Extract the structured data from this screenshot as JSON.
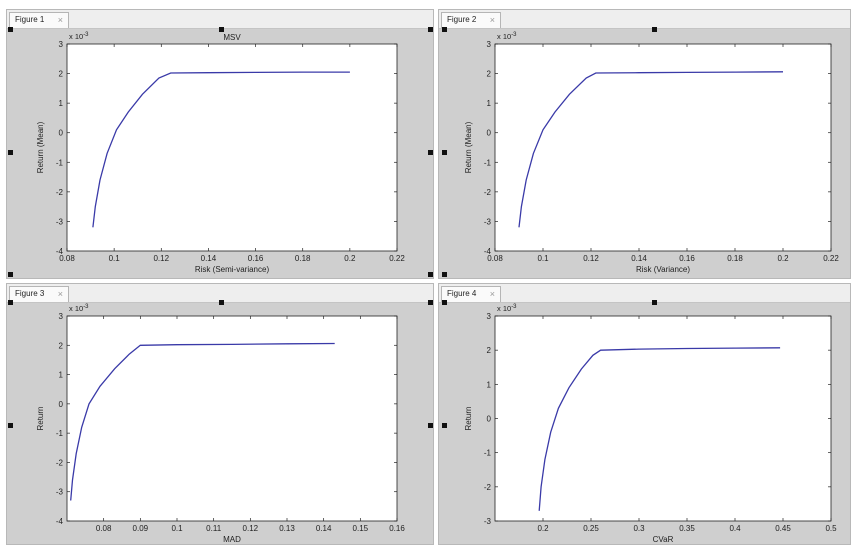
{
  "figures": [
    {
      "tab_label": "Figure 1",
      "close": "×"
    },
    {
      "tab_label": "Figure 2",
      "close": "×"
    },
    {
      "tab_label": "Figure 3",
      "close": "×"
    },
    {
      "tab_label": "Figure 4",
      "close": "×"
    }
  ],
  "colors": {
    "line": "#3a3aa8",
    "pane": "#cfcfcf",
    "axes_bg": "#ffffff"
  },
  "chart_data": [
    {
      "type": "line",
      "title": "MSV",
      "xlabel": "Risk (Semi-variance)",
      "ylabel": "Return (Mean)",
      "xlim": [
        0.08,
        0.22
      ],
      "ylim": [
        -4,
        3
      ],
      "y_exponent": "x 10",
      "y_exponent_power": "-3",
      "xticks": [
        "0.08",
        "0.1",
        "0.12",
        "0.14",
        "0.16",
        "0.18",
        "0.2",
        "0.22"
      ],
      "yticks": [
        "-4",
        "-3",
        "-2",
        "-1",
        "0",
        "1",
        "2",
        "3"
      ],
      "series": [
        {
          "x": [
            0.091,
            0.092,
            0.094,
            0.097,
            0.101,
            0.106,
            0.112,
            0.119,
            0.124,
            0.14,
            0.16,
            0.18,
            0.2
          ],
          "y": [
            -3.2,
            -2.5,
            -1.6,
            -0.7,
            0.1,
            0.7,
            1.3,
            1.85,
            2.02,
            2.03,
            2.04,
            2.05,
            2.05
          ]
        }
      ]
    },
    {
      "type": "line",
      "title": "",
      "xlabel": "Risk (Variance)",
      "ylabel": "Return (Mean)",
      "xlim": [
        0.08,
        0.22
      ],
      "ylim": [
        -4,
        3
      ],
      "y_exponent": "x 10",
      "y_exponent_power": "-3",
      "xticks": [
        "0.08",
        "0.1",
        "0.12",
        "0.14",
        "0.16",
        "0.18",
        "0.2",
        "0.22"
      ],
      "yticks": [
        "-4",
        "-3",
        "-2",
        "-1",
        "0",
        "1",
        "2",
        "3"
      ],
      "series": [
        {
          "x": [
            0.09,
            0.091,
            0.093,
            0.096,
            0.1,
            0.105,
            0.111,
            0.118,
            0.122,
            0.14,
            0.16,
            0.18,
            0.2
          ],
          "y": [
            -3.2,
            -2.5,
            -1.6,
            -0.7,
            0.1,
            0.7,
            1.3,
            1.85,
            2.02,
            2.03,
            2.04,
            2.05,
            2.06
          ]
        }
      ]
    },
    {
      "type": "line",
      "title": "",
      "xlabel": "MAD",
      "ylabel": "Return",
      "xlim": [
        0.07,
        0.16
      ],
      "ylim": [
        -4,
        3
      ],
      "y_exponent": "x 10",
      "y_exponent_power": "-3",
      "xticks": [
        "0.08",
        "0.09",
        "0.1",
        "0.11",
        "0.12",
        "0.13",
        "0.14",
        "0.15",
        "0.16"
      ],
      "yticks": [
        "-4",
        "-3",
        "-2",
        "-1",
        "0",
        "1",
        "2",
        "3"
      ],
      "series": [
        {
          "x": [
            0.071,
            0.0715,
            0.0725,
            0.074,
            0.076,
            0.079,
            0.083,
            0.087,
            0.09,
            0.1,
            0.115,
            0.13,
            0.143
          ],
          "y": [
            -3.3,
            -2.6,
            -1.7,
            -0.8,
            0.0,
            0.6,
            1.2,
            1.7,
            2.0,
            2.02,
            2.03,
            2.05,
            2.06
          ]
        }
      ]
    },
    {
      "type": "line",
      "title": "",
      "xlabel": "CVaR",
      "ylabel": "Return",
      "xlim": [
        0.15,
        0.5
      ],
      "ylim": [
        -3,
        3
      ],
      "y_exponent": "x 10",
      "y_exponent_power": "-3",
      "xticks": [
        "0.2",
        "0.25",
        "0.3",
        "0.35",
        "0.4",
        "0.45",
        "0.5"
      ],
      "yticks": [
        "-3",
        "-2",
        "-1",
        "0",
        "1",
        "2",
        "3"
      ],
      "series": [
        {
          "x": [
            0.196,
            0.198,
            0.202,
            0.208,
            0.216,
            0.227,
            0.24,
            0.252,
            0.26,
            0.3,
            0.35,
            0.4,
            0.447
          ],
          "y": [
            -2.7,
            -2.0,
            -1.2,
            -0.4,
            0.3,
            0.9,
            1.45,
            1.85,
            2.0,
            2.03,
            2.05,
            2.06,
            2.07
          ]
        }
      ]
    }
  ]
}
